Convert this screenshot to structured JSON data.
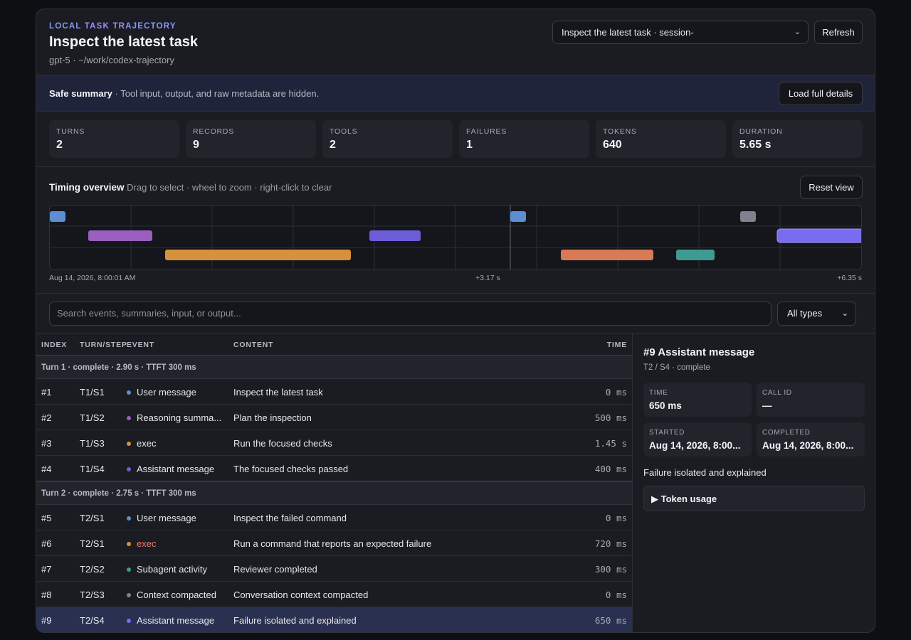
{
  "header": {
    "eyebrow": "LOCAL TASK TRAJECTORY",
    "title": "Inspect the latest task",
    "subtitle": "gpt-5 · ~/work/codex-trajectory",
    "session_value": "Inspect the latest task · session-",
    "refresh_label": "Refresh"
  },
  "summary": {
    "bold": "Safe summary",
    "text": " · Tool input, output, and raw metadata are hidden.",
    "load_label": "Load full details"
  },
  "stats": [
    {
      "label": "TURNS",
      "value": "2"
    },
    {
      "label": "RECORDS",
      "value": "9"
    },
    {
      "label": "TOOLS",
      "value": "2"
    },
    {
      "label": "FAILURES",
      "value": "1"
    },
    {
      "label": "TOKENS",
      "value": "640"
    },
    {
      "label": "DURATION",
      "value": "5.65 s"
    }
  ],
  "timing": {
    "title": "Timing overview",
    "hint": "Drag to select · wheel to zoom · right-click to clear",
    "reset_label": "Reset view",
    "start_label": "Aug 14, 2026, 8:00:01 AM",
    "mid_label": "+3.17 s",
    "end_label": "+6.35 s"
  },
  "colors": {
    "user": "#5b8fd1",
    "reasoning": "#9b5fc0",
    "exec": "#d5913d",
    "assistant": "#6c5ed8",
    "subagent": "#3f9a91",
    "context": "#7d828e",
    "exec_fail": "#d77a55"
  },
  "search": {
    "placeholder": "Search events, summaries, input, or output...",
    "type_value": "All types"
  },
  "table": {
    "headers": {
      "index": "INDEX",
      "turnstep": "TURN/STEP",
      "event": "EVENT",
      "content": "CONTENT",
      "time": "TIME"
    },
    "groups": [
      "Turn 1 · complete · 2.90 s · TTFT 300 ms",
      "Turn 2 · complete · 2.75 s · TTFT 300 ms"
    ],
    "rows": [
      {
        "index": "#1",
        "turnstep": "T1/S1",
        "event": "User message",
        "content": "Inspect the latest task",
        "time": "0 ms"
      },
      {
        "index": "#2",
        "turnstep": "T1/S2",
        "event": "Reasoning summa...",
        "content": "Plan the inspection",
        "time": "500 ms"
      },
      {
        "index": "#3",
        "turnstep": "T1/S3",
        "event": "exec",
        "content": "Run the focused checks",
        "time": "1.45 s"
      },
      {
        "index": "#4",
        "turnstep": "T1/S4",
        "event": "Assistant message",
        "content": "The focused checks passed",
        "time": "400 ms"
      },
      {
        "index": "#5",
        "turnstep": "T2/S1",
        "event": "User message",
        "content": "Inspect the failed command",
        "time": "0 ms"
      },
      {
        "index": "#6",
        "turnstep": "T2/S1",
        "event": "exec",
        "content": "Run a command that reports an expected failure",
        "time": "720 ms"
      },
      {
        "index": "#7",
        "turnstep": "T2/S2",
        "event": "Subagent activity",
        "content": "Reviewer completed",
        "time": "300 ms"
      },
      {
        "index": "#8",
        "turnstep": "T2/S3",
        "event": "Context compacted",
        "content": "Conversation context compacted",
        "time": "0 ms"
      },
      {
        "index": "#9",
        "turnstep": "T2/S4",
        "event": "Assistant message",
        "content": "Failure isolated and explained",
        "time": "650 ms"
      }
    ]
  },
  "detail": {
    "title": "#9 Assistant message",
    "subtitle": "T2 / S4 · complete",
    "time_label": "TIME",
    "time_value": "650 ms",
    "callid_label": "CALL ID",
    "callid_value": "—",
    "started_label": "STARTED",
    "started_value": "Aug 14, 2026, 8:00...",
    "completed_label": "COMPLETED",
    "completed_value": "Aug 14, 2026, 8:00...",
    "message": "Failure isolated and explained",
    "token_label": "▶ Token usage"
  }
}
